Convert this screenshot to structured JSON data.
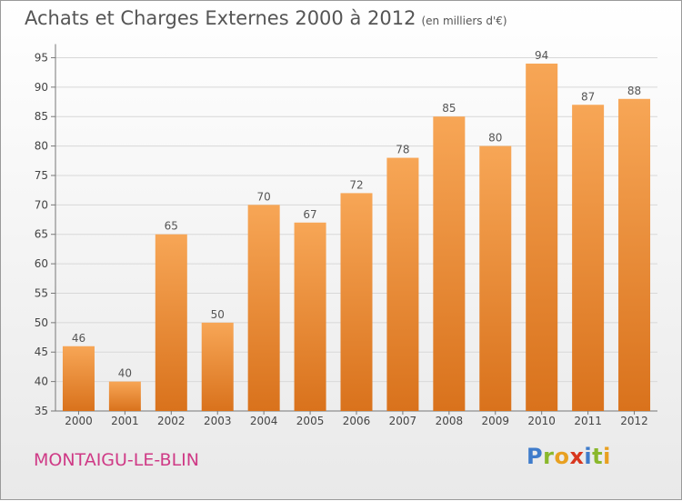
{
  "header": {
    "title": "Achats et Charges Externes 2000 à 2012",
    "subtitle": "(en milliers d'€)"
  },
  "footer": {
    "commune": "MONTAIGU-LE-BLIN",
    "logo": {
      "letters": [
        "P",
        "r",
        "o",
        "x",
        "i",
        "t",
        "i"
      ]
    }
  },
  "colors": {
    "bar_top": "#f7a656",
    "bar_bottom": "#d9721c",
    "axis": "#777777",
    "grid": "#d8d8d8",
    "commune_text": "#cf3a86"
  },
  "chart_data": {
    "type": "bar",
    "title": "Achats et Charges Externes 2000 à 2012",
    "subtitle": "(en milliers d'€)",
    "categories": [
      "2000",
      "2001",
      "2002",
      "2003",
      "2004",
      "2005",
      "2006",
      "2007",
      "2008",
      "2009",
      "2010",
      "2011",
      "2012"
    ],
    "values": [
      46,
      40,
      65,
      50,
      70,
      67,
      72,
      78,
      85,
      80,
      94,
      87,
      88
    ],
    "ylim": [
      35,
      97
    ],
    "yticks": [
      35,
      40,
      45,
      50,
      55,
      60,
      65,
      70,
      75,
      80,
      85,
      90,
      95
    ],
    "grid": true,
    "legend": "none"
  }
}
